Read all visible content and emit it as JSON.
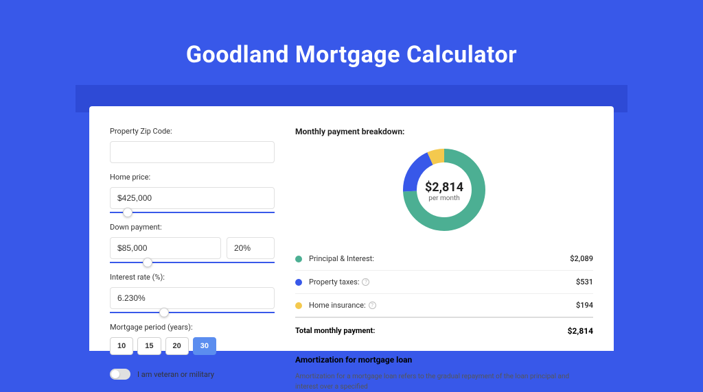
{
  "colors": {
    "page_bg": "#3858e9",
    "header_bar": "#2e4ad6",
    "card_bg": "#ffffff",
    "slider_track": "#3858e9",
    "active_period_bg": "#5b8def"
  },
  "title": "Goodland Mortgage Calculator",
  "form": {
    "zip_label": "Property Zip Code:",
    "zip_value": "",
    "home_price_label": "Home price:",
    "home_price_value": "$425,000",
    "home_price_slider_pct": 8,
    "down_payment_label": "Down payment:",
    "down_payment_value": "$85,000",
    "down_payment_pct_value": "20%",
    "down_payment_slider_pct": 20,
    "interest_label": "Interest rate (%):",
    "interest_value": "6.230%",
    "interest_slider_pct": 30,
    "period_label": "Mortgage period (years):",
    "periods": [
      "10",
      "15",
      "20",
      "30"
    ],
    "period_active": "30",
    "veteran_label": "I am veteran or military"
  },
  "breakdown": {
    "title": "Monthly payment breakdown:",
    "donut": {
      "amount": "$2,814",
      "sub": "per month",
      "size": 120,
      "stroke_width": 20,
      "slices": [
        {
          "label": "Principal & Interest:",
          "value": "$2,089",
          "color": "#4caf93",
          "pct": 74.2
        },
        {
          "label": "Property taxes:",
          "value": "$531",
          "color": "#3858e9",
          "pct": 18.9,
          "help": true
        },
        {
          "label": "Home insurance:",
          "value": "$194",
          "color": "#f4c94e",
          "pct": 6.9,
          "help": true
        }
      ]
    },
    "total_label": "Total monthly payment:",
    "total_value": "$2,814"
  },
  "amortization": {
    "title": "Amortization for mortgage loan",
    "text": "Amortization for a mortgage loan refers to the gradual repayment of the loan principal and interest over a specified"
  }
}
